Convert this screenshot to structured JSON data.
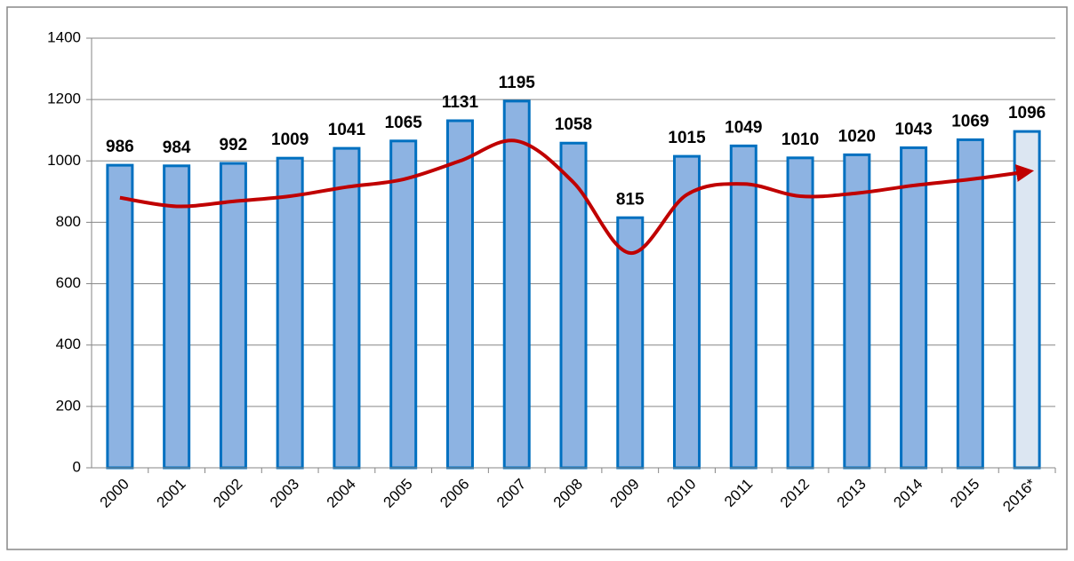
{
  "chart_data": {
    "type": "bar",
    "categories": [
      "2000",
      "2001",
      "2002",
      "2003",
      "2004",
      "2005",
      "2006",
      "2007",
      "2008",
      "2009",
      "2010",
      "2011",
      "2012",
      "2013",
      "2014",
      "2015",
      "2016*"
    ],
    "values": [
      986,
      984,
      992,
      1009,
      1041,
      1065,
      1131,
      1195,
      1058,
      815,
      1015,
      1049,
      1010,
      1020,
      1043,
      1069,
      1096
    ],
    "bar_colors": [
      "#8db3e2",
      "#8db3e2",
      "#8db3e2",
      "#8db3e2",
      "#8db3e2",
      "#8db3e2",
      "#8db3e2",
      "#8db3e2",
      "#8db3e2",
      "#8db3e2",
      "#8db3e2",
      "#8db3e2",
      "#8db3e2",
      "#8db3e2",
      "#8db3e2",
      "#8db3e2",
      "#dce6f2"
    ],
    "bar_edge_color": "#0070c0",
    "trend": {
      "color": "#c00000",
      "values": [
        880,
        852,
        868,
        885,
        915,
        940,
        1000,
        1065,
        930,
        700,
        890,
        925,
        885,
        895,
        920,
        940,
        965
      ]
    },
    "ylim": [
      0,
      1400
    ],
    "yticks": [
      0,
      200,
      400,
      600,
      800,
      1000,
      1200,
      1400
    ],
    "grid": true
  }
}
